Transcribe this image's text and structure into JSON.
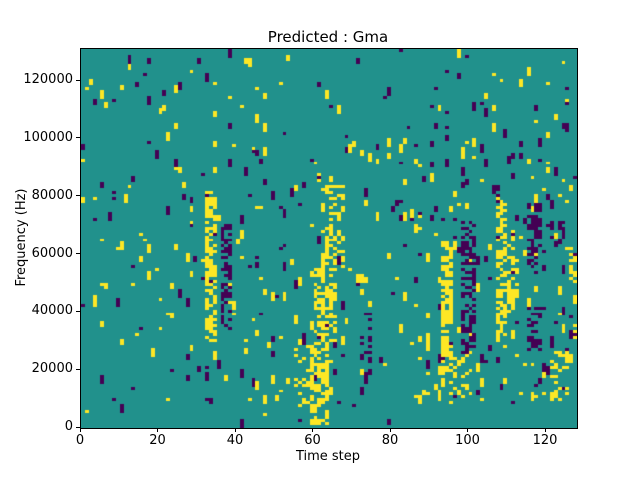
{
  "figure": {
    "title": "Predicted : Gma",
    "xlabel": "Time step",
    "ylabel": "Frequency (Hz)"
  },
  "chart_data": {
    "type": "heatmap",
    "title": "Predicted : Gma",
    "xlabel": "Time step",
    "ylabel": "Frequency (Hz)",
    "x_range": [
      0,
      128
    ],
    "y_range": [
      0,
      131072
    ],
    "x_ticks": [
      0,
      20,
      40,
      60,
      80,
      100,
      120
    ],
    "y_ticks": [
      0,
      20000,
      40000,
      60000,
      80000,
      100000,
      120000
    ],
    "grid": [
      128,
      128
    ],
    "legend": "none",
    "colormap": {
      "name": "viridis-3-level",
      "background_mid": "#21918c",
      "high_yellow": "#fde725",
      "low_purple": "#440154"
    },
    "texture": {
      "seed": 7,
      "base_start_prob": {
        "yellow": 0.016,
        "purple": 0.016
      },
      "run_length": [
        1,
        3
      ],
      "region_modifiers": [
        {
          "t": [
            0,
            30
          ],
          "f": [
            0,
            131072
          ],
          "mult": 0.75
        },
        {
          "t": [
            0,
            128
          ],
          "f": [
            98000,
            131072
          ],
          "mult": 0.6
        },
        {
          "t": [
            0,
            128
          ],
          "f": [
            0,
            8000
          ],
          "mult": 0.3
        },
        {
          "t": [
            85,
            128
          ],
          "f": [
            8000,
            98000
          ],
          "mult": 1.7
        }
      ],
      "clusters": [
        {
          "color": "yellow",
          "t": [
            32,
            35
          ],
          "f": [
            30000,
            82000
          ],
          "density": 0.6
        },
        {
          "color": "purple",
          "t": [
            36,
            39
          ],
          "f": [
            34000,
            75000
          ],
          "density": 0.5
        },
        {
          "color": "yellow",
          "t": [
            59,
            64
          ],
          "f": [
            1000,
            30000
          ],
          "density": 0.6
        },
        {
          "color": "yellow",
          "t": [
            60,
            66
          ],
          "f": [
            30000,
            55000
          ],
          "density": 0.5
        },
        {
          "color": "yellow",
          "t": [
            62,
            68
          ],
          "f": [
            55000,
            85000
          ],
          "density": 0.35
        },
        {
          "color": "yellow",
          "t": [
            55,
            59
          ],
          "f": [
            5000,
            30000
          ],
          "density": 0.18
        },
        {
          "color": "purple",
          "t": [
            72,
            75
          ],
          "f": [
            14000,
            40000
          ],
          "density": 0.25
        },
        {
          "color": "yellow",
          "t": [
            93,
            96
          ],
          "f": [
            24000,
            65000
          ],
          "density": 0.55
        },
        {
          "color": "purple",
          "t": [
            98,
            102
          ],
          "f": [
            26000,
            55000
          ],
          "density": 0.55
        },
        {
          "color": "yellow",
          "t": [
            93,
            101
          ],
          "f": [
            10000,
            28000
          ],
          "density": 0.25
        },
        {
          "color": "purple",
          "t": [
            98,
            102
          ],
          "f": [
            55000,
            72000
          ],
          "density": 0.3
        },
        {
          "color": "yellow",
          "t": [
            107,
            110
          ],
          "f": [
            28000,
            80000
          ],
          "density": 0.5
        },
        {
          "color": "yellow",
          "t": [
            110,
            113
          ],
          "f": [
            40000,
            70000
          ],
          "density": 0.35
        },
        {
          "color": "purple",
          "t": [
            115,
            119
          ],
          "f": [
            55000,
            78000
          ],
          "density": 0.5
        },
        {
          "color": "purple",
          "t": [
            115,
            119
          ],
          "f": [
            27000,
            42000
          ],
          "density": 0.45
        },
        {
          "color": "yellow",
          "t": [
            121,
            126
          ],
          "f": [
            9000,
            27000
          ],
          "density": 0.3
        },
        {
          "color": "yellow",
          "t": [
            126,
            128
          ],
          "f": [
            50000,
            62000
          ],
          "density": 0.4
        }
      ]
    }
  }
}
